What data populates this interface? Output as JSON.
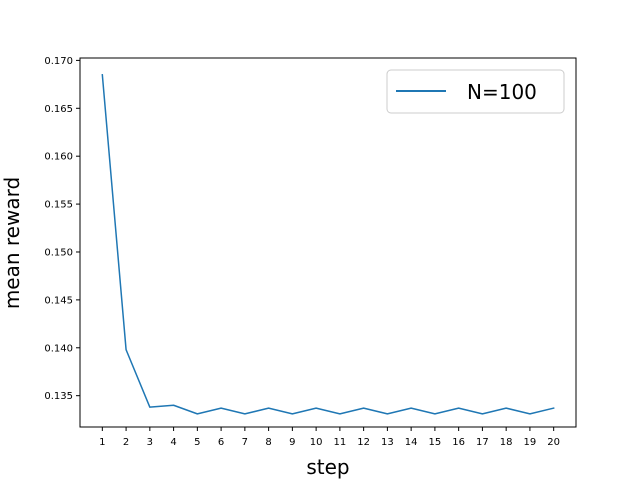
{
  "chart_data": {
    "type": "line",
    "title": "",
    "xlabel": "step",
    "ylabel": "mean reward",
    "xlim": [
      0.06,
      20.94
    ],
    "ylim": [
      0.13173,
      0.17025
    ],
    "x_ticks": [
      1,
      2,
      3,
      4,
      5,
      6,
      7,
      8,
      9,
      10,
      11,
      12,
      13,
      14,
      15,
      16,
      17,
      18,
      19,
      20
    ],
    "y_ticks": [
      0.135,
      0.14,
      0.145,
      0.15,
      0.155,
      0.16,
      0.165,
      0.17
    ],
    "y_tick_labels": [
      "0.135",
      "0.140",
      "0.145",
      "0.150",
      "0.155",
      "0.160",
      "0.165",
      "0.170"
    ],
    "grid": false,
    "legend_position": "top-right",
    "x": [
      1,
      2,
      3,
      4,
      5,
      6,
      7,
      8,
      9,
      10,
      11,
      12,
      13,
      14,
      15,
      16,
      17,
      18,
      19,
      20
    ],
    "series": [
      {
        "name": "N=100",
        "color": "#1f77b4",
        "values": [
          0.1685,
          0.1398,
          0.1338,
          0.134,
          0.1331,
          0.1337,
          0.1331,
          0.1337,
          0.1331,
          0.1337,
          0.1331,
          0.1337,
          0.1331,
          0.1337,
          0.1331,
          0.1337,
          0.1331,
          0.1337,
          0.1331,
          0.1337
        ]
      }
    ]
  }
}
